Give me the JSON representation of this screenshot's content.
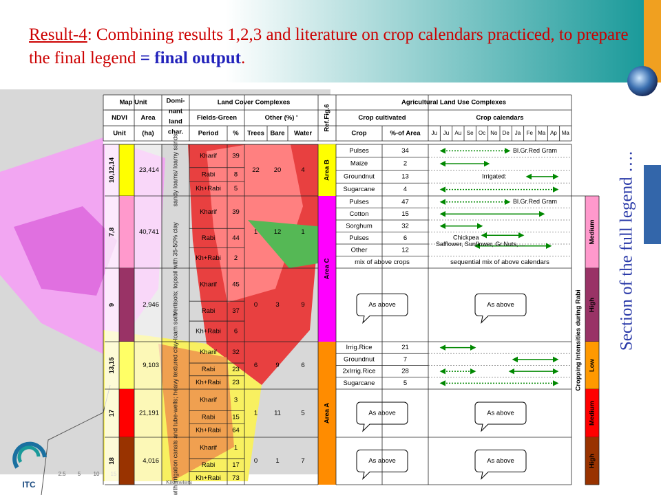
{
  "title": {
    "label": "Result-4",
    "text": ": Combining results 1,2,3 and literature on crop calendars practiced, to prepare the final legend ",
    "emphasis": "= final output",
    "end": "."
  },
  "side_caption": "Section of the full legend ….",
  "logo": "ITC",
  "map_scale": {
    "ticks": [
      "2.5",
      "5",
      "10",
      "15"
    ],
    "unit": "Kilometers"
  },
  "header": {
    "map_unit": "Map Unit",
    "dominant": [
      "Domi-",
      "nant",
      "land",
      "char."
    ],
    "land_cover": "Land Cover Complexes",
    "ref": "Ref.Fig.6",
    "agri": "Agricultural Land Use Complexes",
    "ndvi": [
      "NDVI",
      "Unit"
    ],
    "area": [
      "Area",
      "(ha)"
    ],
    "fields_green": "Fields-Green",
    "other": "Other (%) '",
    "crop_cultivated": "Crop cultivated",
    "crop_calendars": "Crop calendars",
    "period": "Period",
    "pct": "%",
    "trees": "Trees",
    "bare": "Bare",
    "water": "Water",
    "crop": "Crop",
    "pct_area": "%-of Area",
    "months": [
      "Ju",
      "Ju",
      "Au",
      "Se",
      "Oc",
      "No",
      "De",
      "Ja",
      "Fe",
      "Ma",
      "Ap",
      "Ma"
    ]
  },
  "soils": [
    "sandy loams/ loamy sands",
    "Vertisols; topsoil with 35-50% clay",
    "Areas with irrigation canals and tube-wells; heavy textured clay-loam soils"
  ],
  "areas": [
    "Area B",
    "Area C",
    "Area A"
  ],
  "intensity_title": "Cropping Intensities during Rabi",
  "groups": [
    {
      "ndvi": "10,12,14",
      "area": "23,414",
      "periods": [
        {
          "name": "Kharif",
          "pct": 39
        },
        {
          "name": "Rabi",
          "pct": 8
        },
        {
          "name": "Kh+Rabi",
          "pct": 5
        }
      ],
      "other": [
        22,
        20,
        4
      ],
      "crops": [
        {
          "crop": "Pulses",
          "pct": 34
        },
        {
          "crop": "Maize",
          "pct": 2
        },
        {
          "crop": "Groundnut",
          "pct": 13
        },
        {
          "crop": "Sugarcane",
          "pct": 4
        }
      ],
      "notes": [
        "Bl.Gr.Red Gram",
        "Irrigated:"
      ]
    },
    {
      "ndvi": "7,8",
      "area": "40,741",
      "periods": [
        {
          "name": "Kharif",
          "pct": 39
        },
        {
          "name": "Rabi",
          "pct": 44
        },
        {
          "name": "Kh+Rabi",
          "pct": 2
        }
      ],
      "other": [
        1,
        12,
        1
      ],
      "crops": [
        {
          "crop": "Pulses",
          "pct": 47
        },
        {
          "crop": "Cotton",
          "pct": 15
        },
        {
          "crop": "Sorghum",
          "pct": 32
        },
        {
          "crop": "Pulses",
          "pct": 6
        },
        {
          "crop": "Other",
          "pct": 12
        }
      ],
      "notes": [
        "Bl.Gr.Red Gram",
        "Chickpea",
        "Safflower, Sunflower, Gr.Nuts, ..."
      ],
      "mix": "mix of above crops",
      "mix_calendar": "sequential mix of above calendars",
      "intensity": "Medium"
    },
    {
      "ndvi": "9",
      "area": "2,946",
      "periods": [
        {
          "name": "Kharif",
          "pct": 45
        },
        {
          "name": "Rabi",
          "pct": 37
        },
        {
          "name": "Kh+Rabi",
          "pct": 6
        }
      ],
      "other": [
        0,
        3,
        9
      ],
      "as_above": [
        "As above",
        "As above"
      ],
      "intensity": "High"
    },
    {
      "ndvi": "13,15",
      "area": "9,103",
      "periods": [
        {
          "name": "Kharif",
          "pct": 32
        },
        {
          "name": "Rabi",
          "pct": 23
        },
        {
          "name": "Kh+Rabi",
          "pct": 23
        }
      ],
      "other": [
        6,
        9,
        6
      ],
      "crops": [
        {
          "crop": "Irrig.Rice",
          "pct": 21
        },
        {
          "crop": "Groundnut",
          "pct": 7
        },
        {
          "crop": "2xIrrig.Rice",
          "pct": 28
        },
        {
          "crop": "Sugarcane",
          "pct": 5
        }
      ],
      "intensity": "Low"
    },
    {
      "ndvi": "17",
      "area": "21,191",
      "periods": [
        {
          "name": "Kharif",
          "pct": 3
        },
        {
          "name": "Rabi",
          "pct": 15
        },
        {
          "name": "Kh+Rabi",
          "pct": 64
        }
      ],
      "other": [
        1,
        11,
        5
      ],
      "as_above": [
        "As above",
        "As above"
      ],
      "intensity": "Medium"
    },
    {
      "ndvi": "18",
      "area": "4,016",
      "periods": [
        {
          "name": "Kharif",
          "pct": 1
        },
        {
          "name": "Rabi",
          "pct": 17
        },
        {
          "name": "Kh+Rabi",
          "pct": 73
        }
      ],
      "other": [
        0,
        1,
        7
      ],
      "as_above": [
        "As above",
        "As above"
      ],
      "intensity": "High"
    }
  ]
}
